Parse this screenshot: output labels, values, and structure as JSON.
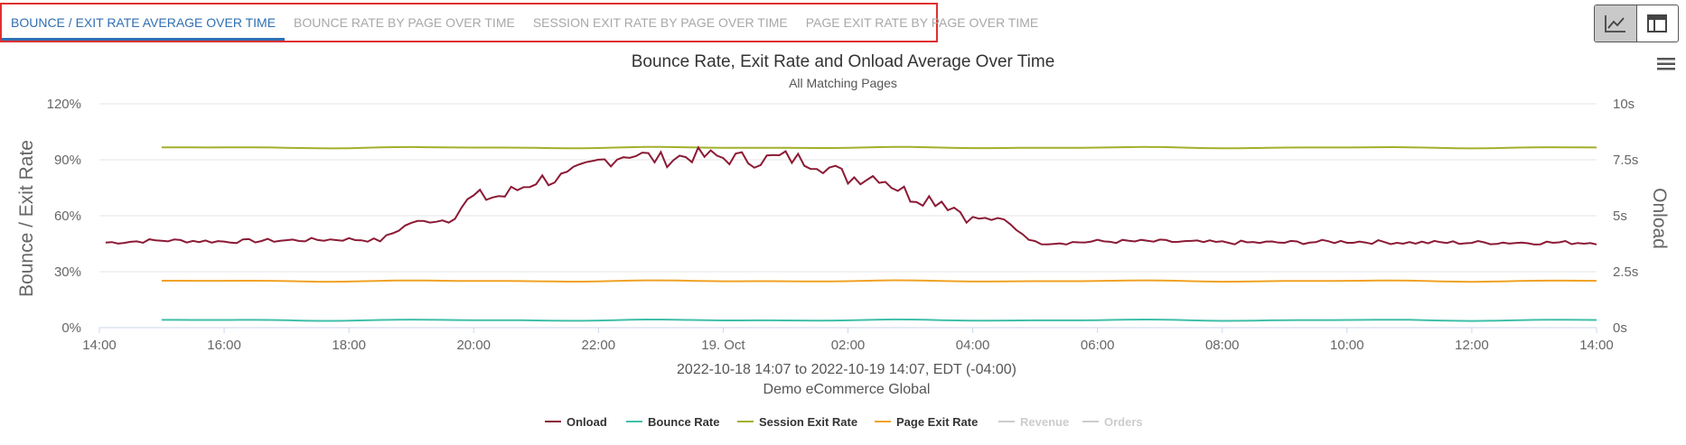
{
  "tabs": [
    {
      "label": "BOUNCE / EXIT RATE AVERAGE OVER TIME",
      "active": true
    },
    {
      "label": "BOUNCE RATE BY PAGE OVER TIME",
      "active": false
    },
    {
      "label": "SESSION EXIT RATE BY PAGE OVER TIME",
      "active": false
    },
    {
      "label": "PAGE EXIT RATE BY PAGE OVER TIME",
      "active": false
    }
  ],
  "colors": {
    "onload": "#8b1a35",
    "bounce": "#3fbfa8",
    "session_exit": "#a2b02a",
    "page_exit": "#f0a224",
    "hidden": "#cccccc",
    "text": "#333333",
    "axis_text": "#666666",
    "grid": "#e6e6e6"
  },
  "chart_data": {
    "type": "line",
    "title": "Bounce Rate, Exit Rate and Onload Average Over Time",
    "subtitle": "All Matching Pages",
    "ylabel": "Bounce / Exit Rate",
    "y2label": "Onload",
    "ylim": [
      0,
      120
    ],
    "y2lim": [
      0,
      10
    ],
    "yticks": [
      "0%",
      "30%",
      "60%",
      "90%",
      "120%"
    ],
    "y2ticks": [
      "0s",
      "2.5s",
      "5s",
      "7.5s",
      "10s"
    ],
    "xticks": [
      "14:00",
      "16:00",
      "18:00",
      "20:00",
      "22:00",
      "19. Oct",
      "02:00",
      "04:00",
      "06:00",
      "08:00",
      "10:00",
      "12:00",
      "14:00"
    ],
    "x_range_hours": [
      14,
      38
    ],
    "caption_line1": "2022-10-18 14:07 to 2022-10-19 14:07, EDT (-04:00)",
    "caption_line2": "Demo eCommerce Global",
    "series": [
      {
        "name": "Onload",
        "axis": "right",
        "visible": true,
        "x": [
          14.1,
          15,
          16,
          17,
          18,
          18.5,
          19,
          19.5,
          20,
          20.5,
          21,
          21.5,
          22,
          22.5,
          23,
          23.5,
          24,
          24.5,
          25,
          25.5,
          26,
          26.5,
          27,
          27.5,
          28,
          28.5,
          29,
          29.5,
          30,
          31,
          32,
          33,
          34,
          35,
          36,
          37,
          38
        ],
        "values": [
          3.8,
          3.9,
          3.85,
          3.9,
          3.95,
          3.9,
          4.7,
          4.8,
          5.8,
          5.9,
          6.6,
          6.7,
          7.4,
          7.8,
          7.5,
          7.7,
          7.6,
          7.5,
          7.6,
          7.4,
          6.7,
          6.8,
          5.9,
          5.7,
          4.9,
          4.8,
          3.8,
          3.8,
          3.85,
          3.85,
          3.8,
          3.8,
          3.85,
          3.8,
          3.8,
          3.8,
          3.8
        ]
      },
      {
        "name": "Bounce Rate",
        "axis": "left",
        "visible": true,
        "x_start": 15,
        "x_end": 38,
        "value": 4
      },
      {
        "name": "Session Exit Rate",
        "axis": "left",
        "visible": true,
        "x_start": 15,
        "x_end": 38,
        "value": 96.5
      },
      {
        "name": "Page Exit Rate",
        "axis": "left",
        "visible": true,
        "x_start": 15,
        "x_end": 38,
        "value": 25
      },
      {
        "name": "Revenue",
        "axis": "left",
        "visible": false
      },
      {
        "name": "Orders",
        "axis": "left",
        "visible": false
      }
    ],
    "legend_position": "bottom-center"
  }
}
